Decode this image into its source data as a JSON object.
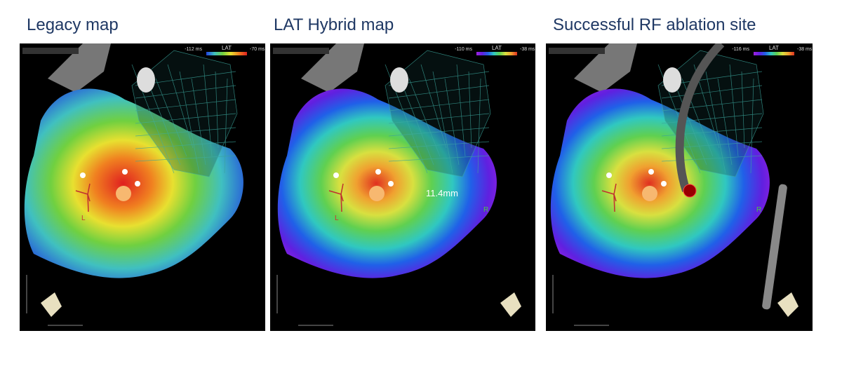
{
  "panels": [
    {
      "title": "Legacy map",
      "scale": {
        "min": "-112 ms",
        "label": "LAT",
        "max": "-70 ms"
      },
      "markers": [
        "L"
      ]
    },
    {
      "title": "LAT Hybrid map",
      "scale": {
        "min": "-110 ms",
        "label": "LAT",
        "max": "-38 ms"
      },
      "measurement": "11.4mm",
      "markers": [
        "L",
        "R"
      ]
    },
    {
      "title": "Successful RF ablation site",
      "scale": {
        "min": "-116 ms",
        "label": "LAT",
        "max": "-38 ms"
      },
      "markers": [
        "R"
      ]
    }
  ]
}
